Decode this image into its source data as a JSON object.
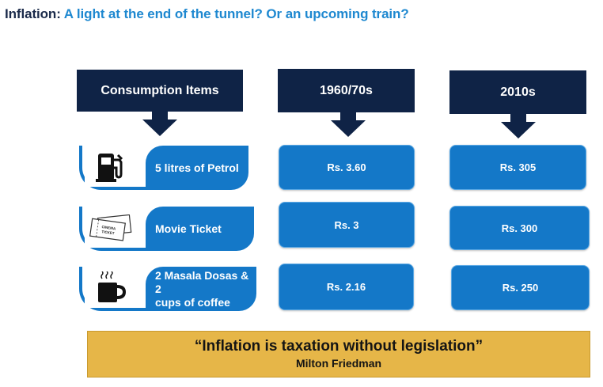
{
  "title": {
    "label": "Inflation:",
    "text": "A light at the end of the tunnel? Or an upcoming train?"
  },
  "columns": [
    {
      "header": "Consumption Items"
    },
    {
      "header": "1960/70s"
    },
    {
      "header": "2010s"
    }
  ],
  "rows": [
    {
      "item": "5 litres of Petrol",
      "icon": "fuel-pump-icon",
      "price_1960s": "Rs. 3.60",
      "price_2010s": "Rs. 305"
    },
    {
      "item": "Movie Ticket",
      "icon": "movie-ticket-icon",
      "icon_text": [
        "CINEMA",
        "TICKET"
      ],
      "price_1960s": "Rs. 3",
      "price_2010s": "Rs. 300"
    },
    {
      "item_lines": [
        "2 Masala Dosas & 2",
        "cups of coffee"
      ],
      "icon": "coffee-cup-icon",
      "price_1960s": "Rs. 2.16",
      "price_2010s": "Rs. 250"
    }
  ],
  "quote": {
    "text": "“Inflation is taxation without legislation”",
    "author": "Milton Friedman"
  },
  "colors": {
    "navy": "#0f2346",
    "blue": "#1478c8",
    "title_blue": "#1e88d0",
    "gold": "#e6b648"
  }
}
